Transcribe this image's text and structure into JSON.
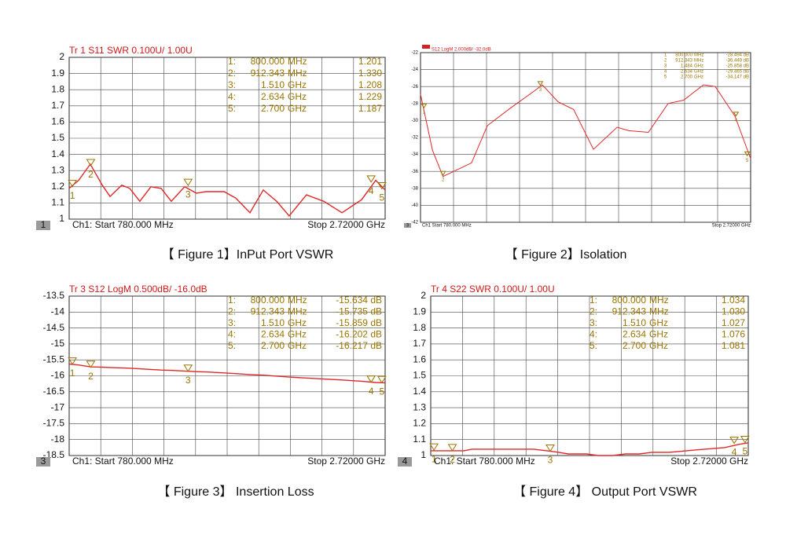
{
  "chart_data": [
    {
      "type": "line",
      "title": "Tr 1  S11 SWR 0.100U/  1.00U",
      "caption": "【 Figure 1】InPut Port VSWR",
      "trace_number": "1",
      "start_label": "Ch1:  Start  780.000 MHz",
      "stop_label": "Stop  2.72000 GHz",
      "color": "#e02828",
      "xlim": [
        780,
        2720
      ],
      "ylim": [
        1,
        2
      ],
      "yticks": [
        1,
        1.1,
        1.2,
        1.3,
        1.4,
        1.5,
        1.6,
        1.7,
        1.8,
        1.9,
        2
      ],
      "x": [
        780,
        838,
        910,
        983,
        1031,
        1103,
        1152,
        1214,
        1282,
        1345,
        1407,
        1489,
        1562,
        1620,
        1731,
        1803,
        1890,
        1972,
        2054,
        2131,
        2237,
        2343,
        2455,
        2575,
        2662,
        2720
      ],
      "values": [
        1.19,
        1.24,
        1.34,
        1.21,
        1.14,
        1.21,
        1.19,
        1.11,
        1.2,
        1.19,
        1.11,
        1.2,
        1.16,
        1.17,
        1.17,
        1.13,
        1.04,
        1.18,
        1.11,
        1.02,
        1.15,
        1.11,
        1.04,
        1.12,
        1.24,
        1.18
      ],
      "markers": [
        {
          "name": "1",
          "row": "1:",
          "x": {
            "value": 800,
            "label": "800.000"
          },
          "unit": "MHz",
          "y": {
            "value": 1.201,
            "label": "1.201"
          }
        },
        {
          "name": "2",
          "row": "2:",
          "x": {
            "value": 912.343,
            "label": "912.343"
          },
          "unit": "MHz",
          "y": {
            "value": 1.33,
            "label": "1.330"
          }
        },
        {
          "name": "3",
          "row": "3:",
          "x": {
            "value": 1510,
            "label": "1.510"
          },
          "unit": "GHz",
          "y": {
            "value": 1.208,
            "label": "1.208"
          }
        },
        {
          "name": "4",
          "row": "4:",
          "x": {
            "value": 2634,
            "label": "2.634"
          },
          "unit": "GHz",
          "y": {
            "value": 1.229,
            "label": "1.229"
          }
        },
        {
          "name": "5",
          "row": "5:",
          "x": {
            "value": 2700,
            "label": "2.700"
          },
          "unit": "GHz",
          "y": {
            "value": 1.187,
            "label": "1.187"
          }
        }
      ]
    },
    {
      "type": "line",
      "title": "S12 LogM 2.000dB/ -32.0dB",
      "caption": "【 Figure 2】Isolation",
      "trace_number": "3",
      "start_label": "Ch1  Start  780.000 MHz",
      "stop_label": "Stop 2.72000 GHz",
      "color": "#e02828",
      "xlim": [
        780,
        2720
      ],
      "ylim": [
        -42,
        -22
      ],
      "yticks": [
        -42,
        -40,
        -38,
        -36,
        -34,
        -32,
        -30,
        -28,
        -26,
        -24,
        -22
      ],
      "x": [
        780,
        850,
        912,
        1080,
        1173,
        1311,
        1450,
        1496,
        1588,
        1680,
        1796,
        1935,
        2004,
        2119,
        2235,
        2327,
        2443,
        2512,
        2628,
        2720
      ],
      "values": [
        -26.9,
        -33.5,
        -36.6,
        -35,
        -30.6,
        -28.5,
        -26.5,
        -25.8,
        -27.8,
        -28.7,
        -33.4,
        -30.8,
        -31.2,
        -31.4,
        -28,
        -27.6,
        -25.8,
        -26,
        -29.5,
        -34.5
      ],
      "markers": [
        {
          "name": "1",
          "row": "1",
          "x": {
            "value": 800,
            "label": "800.000"
          },
          "unit": "MHz",
          "y": {
            "value": -28.494,
            "label": "-28.494 dB"
          }
        },
        {
          "name": "2",
          "row": "2",
          "x": {
            "value": 912.343,
            "label": "912.343"
          },
          "unit": "MHz",
          "y": {
            "value": -36.449,
            "label": "-36.449 dB"
          }
        },
        {
          "name": "3",
          "row": "3",
          "x": {
            "value": 1484,
            "label": "1.484"
          },
          "unit": "GHz",
          "y": {
            "value": -25.858,
            "label": "-25.858 dB"
          }
        },
        {
          "name": "4",
          "row": "4",
          "x": {
            "value": 2634,
            "label": "2.634"
          },
          "unit": "GHz",
          "y": {
            "value": -29.465,
            "label": "-29.465 dB"
          }
        },
        {
          "name": "5",
          "row": "5",
          "x": {
            "value": 2700,
            "label": "2.700"
          },
          "unit": "GHz",
          "y": {
            "value": -34.147,
            "label": "-34.147 dB"
          }
        }
      ]
    },
    {
      "type": "line",
      "title": "Tr 3  S12 LogM 0.500dB/ -16.0dB",
      "caption": "【 Figure 3】 Insertion Loss",
      "trace_number": "3",
      "start_label": "Ch1:  Start  780.000 MHz",
      "stop_label": "Stop  2.72000 GHz",
      "color": "#e02828",
      "xlim": [
        780,
        2720
      ],
      "ylim": [
        -18.5,
        -13.5
      ],
      "yticks": [
        -18.5,
        -18,
        -17.5,
        -17,
        -16.5,
        -16,
        -15.5,
        -15,
        -14.5,
        -14,
        -13.5
      ],
      "x": [
        780,
        838,
        910,
        983,
        1031,
        1103,
        1152,
        1214,
        1282,
        1345,
        1407,
        1489,
        1562,
        1620,
        1731,
        1803,
        1890,
        1972,
        2054,
        2131,
        2237,
        2343,
        2455,
        2575,
        2662,
        2720
      ],
      "values": [
        -15.63,
        -15.66,
        -15.72,
        -15.73,
        -15.74,
        -15.75,
        -15.76,
        -15.78,
        -15.8,
        -15.82,
        -15.83,
        -15.85,
        -15.87,
        -15.88,
        -15.91,
        -15.93,
        -15.96,
        -15.98,
        -16.01,
        -16.04,
        -16.07,
        -16.1,
        -16.13,
        -16.17,
        -16.21,
        -16.22
      ],
      "markers": [
        {
          "name": "1",
          "row": "1:",
          "x": {
            "value": 800,
            "label": "800.000"
          },
          "unit": "MHz",
          "y": {
            "value": -15.634,
            "label": "-15.634 dB"
          }
        },
        {
          "name": "2",
          "row": "2:",
          "x": {
            "value": 912.343,
            "label": "912.343"
          },
          "unit": "MHz",
          "y": {
            "value": -15.735,
            "label": "-15.735 dB"
          }
        },
        {
          "name": "3",
          "row": "3:",
          "x": {
            "value": 1510,
            "label": "1.510"
          },
          "unit": "GHz",
          "y": {
            "value": -15.859,
            "label": "-15.859 dB"
          }
        },
        {
          "name": "4",
          "row": "4:",
          "x": {
            "value": 2634,
            "label": "2.634"
          },
          "unit": "GHz",
          "y": {
            "value": -16.202,
            "label": "-16.202 dB"
          }
        },
        {
          "name": "5",
          "row": "5:",
          "x": {
            "value": 2700,
            "label": "2.700"
          },
          "unit": "GHz",
          "y": {
            "value": -16.217,
            "label": "-16.217 dB"
          }
        }
      ]
    },
    {
      "type": "line",
      "title": "Tr 4  S22 SWR 0.100U/  1.00U",
      "caption": "【 Figure 4】 Output Port VSWR",
      "trace_number": "4",
      "start_label": "Ch1:  Start  780.000 MHz",
      "stop_label": "Stop  2.72000 GHz",
      "color": "#e02828",
      "xlim": [
        780,
        2720
      ],
      "ylim": [
        1,
        2
      ],
      "yticks": [
        1,
        1.1,
        1.2,
        1.3,
        1.4,
        1.5,
        1.6,
        1.7,
        1.8,
        1.9,
        2
      ],
      "x": [
        780,
        838,
        910,
        983,
        1031,
        1103,
        1152,
        1214,
        1282,
        1345,
        1407,
        1489,
        1562,
        1620,
        1731,
        1803,
        1890,
        1972,
        2054,
        2131,
        2237,
        2343,
        2455,
        2575,
        2662,
        2720
      ],
      "values": [
        1.03,
        1.03,
        1.03,
        1.03,
        1.04,
        1.04,
        1.04,
        1.04,
        1.04,
        1.04,
        1.04,
        1.03,
        1.02,
        1.01,
        1.01,
        1.0,
        1.0,
        1.01,
        1.01,
        1.02,
        1.02,
        1.03,
        1.04,
        1.05,
        1.07,
        1.08
      ],
      "markers": [
        {
          "name": "1",
          "row": "1:",
          "x": {
            "value": 800,
            "label": "800.000"
          },
          "unit": "MHz",
          "y": {
            "value": 1.034,
            "label": "1.034"
          }
        },
        {
          "name": "2",
          "row": "2:",
          "x": {
            "value": 912.343,
            "label": "912.343"
          },
          "unit": "MHz",
          "y": {
            "value": 1.03,
            "label": "1.030"
          }
        },
        {
          "name": "3",
          "row": "3:",
          "x": {
            "value": 1510,
            "label": "1.510"
          },
          "unit": "GHz",
          "y": {
            "value": 1.027,
            "label": "1.027"
          }
        },
        {
          "name": "4",
          "row": "4:",
          "x": {
            "value": 2634,
            "label": "2.634"
          },
          "unit": "GHz",
          "y": {
            "value": 1.076,
            "label": "1.076"
          }
        },
        {
          "name": "5",
          "row": "5:",
          "x": {
            "value": 2700,
            "label": "2.700"
          },
          "unit": "GHz",
          "y": {
            "value": 1.081,
            "label": "1.081"
          }
        }
      ]
    }
  ]
}
